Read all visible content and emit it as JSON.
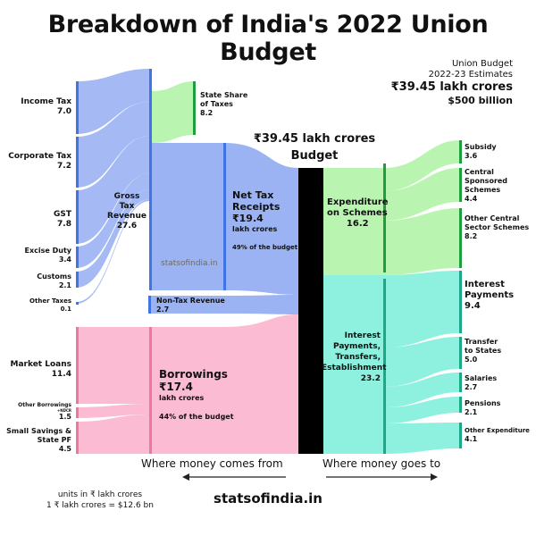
{
  "title": "Breakdown of India's 2022 Union Budget",
  "estimates": {
    "line1": "Union Budget",
    "line2": "2022-23 Estimates",
    "total_inr": "₹39.45 lakh crores",
    "total_usd": "$500 billion"
  },
  "center_label": {
    "amount": "₹39.45 lakh crores",
    "word": "Budget"
  },
  "sources": [
    {
      "name": "Income Tax",
      "value": "7.0"
    },
    {
      "name": "Corporate Tax",
      "value": "7.2"
    },
    {
      "name": "GST",
      "value": "7.8"
    },
    {
      "name": "Excise Duty",
      "value": "3.4"
    },
    {
      "name": "Customs",
      "value": "2.1"
    },
    {
      "name": "Other Taxes",
      "value": "0.1"
    },
    {
      "name": "Market Loans",
      "value": "11.4"
    },
    {
      "name": "Other Borrowings",
      "sub": "+NDCR",
      "value": "1.5"
    },
    {
      "name": "Small Savings &",
      "name2": "State PF",
      "value": "4.5"
    }
  ],
  "gross_tax": {
    "line1": "Gross Tax",
    "line2": "Revenue",
    "value": "27.6"
  },
  "state_share": {
    "line1": "State Share",
    "line2": "of Taxes",
    "value": "8.2"
  },
  "net_tax": {
    "line1": "Net Tax",
    "line2": "Receipts",
    "amount": "₹19.4",
    "unit": "lakh crores",
    "pct": "49% of the budget"
  },
  "non_tax": {
    "name": "Non-Tax Revenue",
    "value": "2.7"
  },
  "borrowings": {
    "name": "Borrowings",
    "amount": "₹17.4",
    "unit": "lakh crores",
    "pct": "44% of the budget"
  },
  "schemes": {
    "line1": "Expenditure",
    "line2": "on Schemes",
    "value": "16.2"
  },
  "interest_group": {
    "line1": "Interest",
    "line2": "Payments,",
    "line3": "Transfers,",
    "line4": "Establishment",
    "value": "23.2"
  },
  "destinations": [
    {
      "l1": "Subsidy",
      "value": "3.6"
    },
    {
      "l1": "Central",
      "l2": "Sponsored",
      "l3": "Schemes",
      "value": "4.4"
    },
    {
      "l1": "Other Central",
      "l2": "Sector Schemes",
      "value": "8.2"
    },
    {
      "l1": "Interest",
      "l2": "Payments",
      "value": "9.4"
    },
    {
      "l1": "Transfer",
      "l2": "to States",
      "value": "5.0"
    },
    {
      "l1": "Salaries",
      "value": "2.7"
    },
    {
      "l1": "Pensions",
      "value": "2.1"
    },
    {
      "l1": "Other Expenditure",
      "value": "4.1"
    }
  ],
  "watermark": "statsofindia.in",
  "direction": {
    "left": "Where money comes from",
    "right": "Where money goes to"
  },
  "site": "statsofindia.in",
  "units": {
    "line1": "units in ₹ lakh crores",
    "line2": "1 ₹ lakh crores = $12.6 bn"
  },
  "colors": {
    "blue": "#9bb3f3",
    "blue_dark": "#3f74e6",
    "green": "#b9f5b0",
    "green_dark": "#1f9e3e",
    "pink": "#fbbbd3",
    "pink_dark": "#f0759f",
    "teal": "#8ef0de",
    "teal_dark": "#1aa886",
    "black": "#000000"
  }
}
